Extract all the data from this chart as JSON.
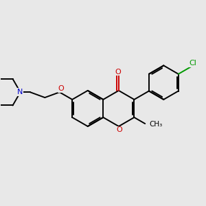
{
  "bg": "#e8e8e8",
  "bc": "#000000",
  "oc": "#cc0000",
  "nc": "#0000cc",
  "clc": "#009900",
  "lw": 1.4,
  "dbl_off": 0.07,
  "BL": 0.82,
  "fig_w": 3.0,
  "fig_h": 3.0,
  "dpi": 100,
  "xlim": [
    0.3,
    9.7
  ],
  "ylim": [
    2.8,
    7.8
  ]
}
